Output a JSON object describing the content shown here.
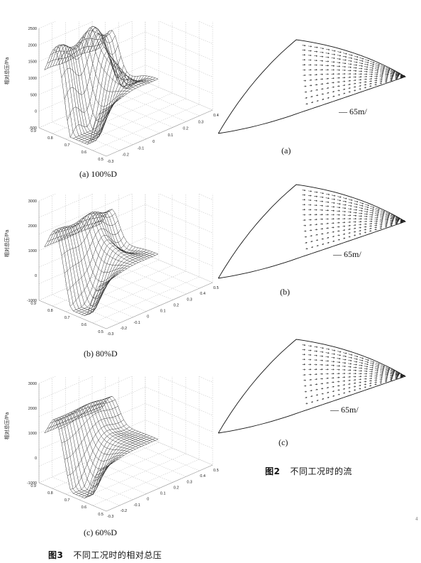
{
  "surface_plots": [
    {
      "caption": "(a) 100%D",
      "zlabel": "相对总压/Pa",
      "z_ticks": [
        "2500",
        "2000",
        "1500",
        "1000",
        "500",
        "0",
        "-500"
      ],
      "x_ticks": [
        "-0.3",
        "-0.2",
        "-0.1",
        "0",
        "0.1",
        "0.2",
        "0.3",
        "0.4"
      ],
      "y_ticks": [
        "0.9",
        "0.8",
        "0.7",
        "0.6",
        "0.5"
      ]
    },
    {
      "caption": "(b) 80%D",
      "zlabel": "相对总压/Pa",
      "z_ticks": [
        "3000",
        "2000",
        "1000",
        "0",
        "-1000"
      ],
      "x_ticks": [
        "-0.3",
        "-0.2",
        "-0.1",
        "0",
        "0.1",
        "0.2",
        "0.3",
        "0.4",
        "0.5"
      ],
      "y_ticks": [
        "0.9",
        "0.8",
        "0.7",
        "0.6",
        "0.5"
      ]
    },
    {
      "caption": "(c) 60%D",
      "zlabel": "相对总压/Pa",
      "z_ticks": [
        "3000",
        "2000",
        "1000",
        "0",
        "-1000"
      ],
      "x_ticks": [
        "-0.3",
        "-0.2",
        "-0.1",
        "0",
        "0.1",
        "0.2",
        "0.3",
        "0.4",
        "0.5"
      ],
      "y_ticks": [
        "0.9",
        "0.8",
        "0.7",
        "0.6",
        "0.5"
      ]
    }
  ],
  "vector_plots": [
    {
      "caption": "(a)",
      "scale": "— 65m/"
    },
    {
      "caption": "(b)",
      "scale": "— 65m/"
    },
    {
      "caption": "(c)",
      "scale": "— 65m/"
    }
  ],
  "fig2": {
    "num": "图2",
    "text": "不同工况时的流"
  },
  "fig3": {
    "num": "图3",
    "text": "不同工况时的相对总压"
  },
  "corner_mark": "4"
}
